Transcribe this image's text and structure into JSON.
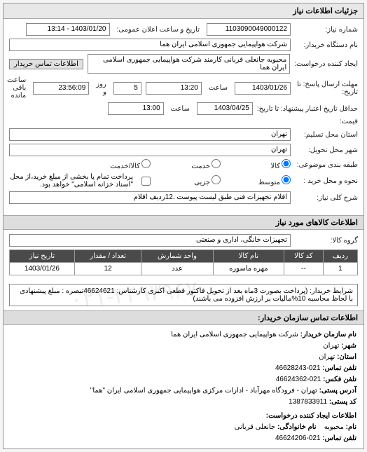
{
  "header": {
    "title": "جزئیات اطلاعات نیاز"
  },
  "form": {
    "req_number_label": "شماره نیاز:",
    "req_number": "1103090049000122",
    "pub_datetime_label": "تاریخ و ساعت اعلان عمومی:",
    "pub_datetime": "1403/01/20 - 13:14",
    "buyer_device_label": "نام دستگاه خریدار:",
    "buyer_device": "شرکت هواپیمایی جمهوری اسلامی ایران هما",
    "requester_label": "ایجاد کننده درخواست:",
    "requester": "محبوبه جانعلی قربانی کارمند شرکت هواپیمایی جمهوری اسلامی ایران هما",
    "buyer_contact_btn": "اطلاعات تماس خریدار",
    "deadline_send_label": "مهلت ارسال پاسخ: تا تاریخ:",
    "deadline_send_date": "1403/01/26",
    "time_label": "ساعت",
    "deadline_send_time": "13:20",
    "days_remain": "5",
    "days_remain_label": "روز و",
    "time_remain": "23:56:09",
    "time_remain_label": "ساعت باقی مانده",
    "valid_until_label": "حداقل تاریخ اعتبار پیشنهاد: تا تاریخ:",
    "valid_until_date": "1403/04/25",
    "valid_until_time": "13:00",
    "price_label": "قیمت:",
    "province_label": "استان محل تسلیم:",
    "province": "تهران",
    "city_label": "شهر محل تحویل:",
    "city": "تهران",
    "budget_label": "طبقه بندی موضوعی:",
    "budget_opts": {
      "o1": "کالا",
      "o2": "خدمت",
      "o3": "کالا/خدمت"
    },
    "order_type_label": "نحوه و محل خرید :",
    "order_opts": {
      "o1": "متوسط",
      "o2": "جزیی"
    },
    "order_note": "پرداخت تمام یا بخشی از مبلغ خرید،از محل \"اسناد خزانه اسلامی\" خواهد بود.",
    "desc_label": "شرح کلی نیاز:",
    "desc": "اقلام تجهیزات فنی طبق لیست پیوست .12ردیف اقلام"
  },
  "goods": {
    "section_title": "اطلاعات کالاهای مورد نیاز",
    "group_label": "گروه کالا:",
    "group": "تجهیزات خانگی، اداری و صنعتی",
    "columns": [
      "ردیف",
      "کد کالا",
      "نام کالا",
      "واحد شمارش",
      "تعداد / مقدار",
      "تاریخ نیاز"
    ],
    "rows": [
      [
        "1",
        "--",
        "مهره ماسوره",
        "عدد",
        "12",
        "1403/01/26"
      ]
    ]
  },
  "notes": {
    "label": "شرایط خریدار:",
    "text": "(پرداخت بصورت 3ماه بعد از تحویل فاکتور قطعی اکبری کارشناس: 46624621تبصره : مبلغ پیشنهادی با لحاظ محاسبه 10%مالیات بر ارزش افزوده می باشند)"
  },
  "contact": {
    "section_title": "اطلاعات تماس سازمان خریدار:",
    "org_label": "نام سازمان خریدار:",
    "org": "شرکت هواپیمایی جمهوری اسلامی ایران هما",
    "city_label": "شهر:",
    "city": "تهران",
    "province_label": "استان:",
    "province": "تهران",
    "phone_label": "تلفن تماس:",
    "phone": "021-46628243",
    "fax_label": "تلفن فکس:",
    "fax": "021-46624362",
    "address_label": "آدرس پستی:",
    "address": "تهران - فرودگاه مهرآباد - ادارات مرکزی هواپیمایی جمهوری اسلامی ایران \"هما\"",
    "postal_label": "کد پستی:",
    "postal": "1387833911",
    "creator_section": "اطلاعات ایجاد کننده درخواست:",
    "fname_label": "نام:",
    "fname": "محبوبه",
    "lname_label": "نام خانوادگی:",
    "lname": "جانعلی قربانی",
    "cphone_label": "تلفن تماس:",
    "cphone": "021-46624206"
  },
  "watermark": "۰۲۱-۳۴۹۳۹۶۷۰"
}
